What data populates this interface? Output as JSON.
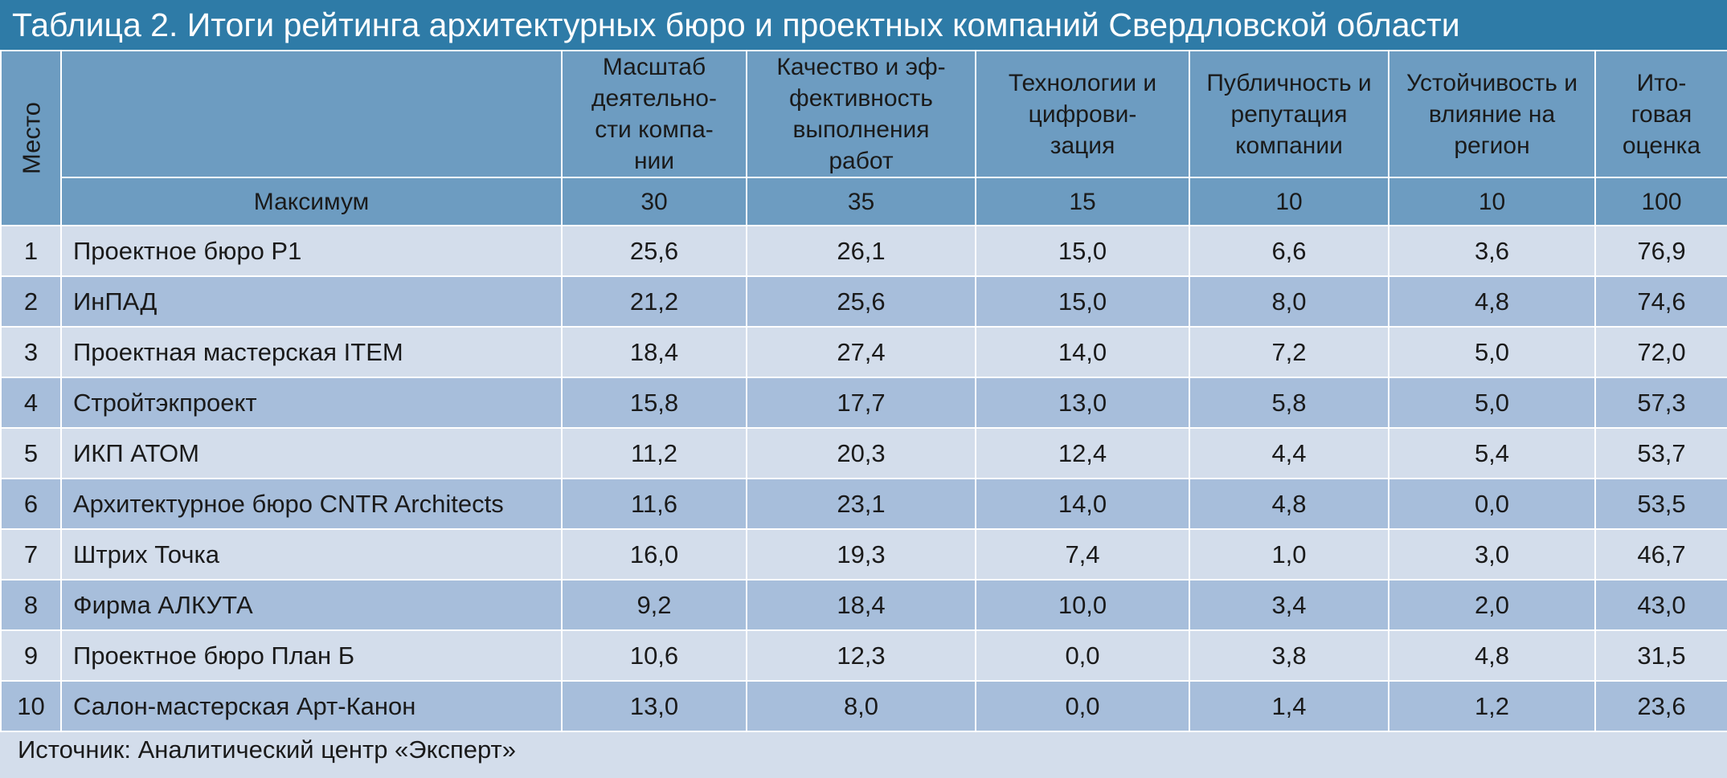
{
  "title": "Таблица 2. Итоги рейтинга архитектурных бюро и проектных компаний Свердловской области",
  "header": {
    "place": "Место",
    "columns": [
      {
        "label": "Масштаб деятельно-сти компа-нии"
      },
      {
        "label": "Качество и эф-фективность выполнения работ"
      },
      {
        "label": "Технологии и цифрови-зация"
      },
      {
        "label": "Публичность и репутация компании"
      },
      {
        "label": "Устойчивость и влияние на регион"
      },
      {
        "label": "Ито-говая оценка"
      }
    ],
    "max_label": "Максимум",
    "max_values": [
      "30",
      "35",
      "15",
      "10",
      "10",
      "100"
    ]
  },
  "rows": [
    {
      "place": "1",
      "name": "Проектное бюро Р1",
      "values": [
        "25,6",
        "26,1",
        "15,0",
        "6,6",
        "3,6",
        "76,9"
      ]
    },
    {
      "place": "2",
      "name": "ИнПАД",
      "values": [
        "21,2",
        "25,6",
        "15,0",
        "8,0",
        "4,8",
        "74,6"
      ]
    },
    {
      "place": "3",
      "name": "Проектная мастерская ITEM",
      "values": [
        "18,4",
        "27,4",
        "14,0",
        "7,2",
        "5,0",
        "72,0"
      ]
    },
    {
      "place": "4",
      "name": "Стройтэкпроект",
      "values": [
        "15,8",
        "17,7",
        "13,0",
        "5,8",
        "5,0",
        "57,3"
      ]
    },
    {
      "place": "5",
      "name": "ИКП АТОМ",
      "values": [
        "11,2",
        "20,3",
        "12,4",
        "4,4",
        "5,4",
        "53,7"
      ]
    },
    {
      "place": "6",
      "name": "Архитектурное бюро CNTR Architects",
      "values": [
        "11,6",
        "23,1",
        "14,0",
        "4,8",
        "0,0",
        "53,5"
      ]
    },
    {
      "place": "7",
      "name": "Штрих Точка",
      "values": [
        "16,0",
        "19,3",
        "7,4",
        "1,0",
        "3,0",
        "46,7"
      ]
    },
    {
      "place": "8",
      "name": "Фирма АЛКУТА",
      "values": [
        "9,2",
        "18,4",
        "10,0",
        "3,4",
        "2,0",
        "43,0"
      ]
    },
    {
      "place": "9",
      "name": "Проектное бюро План Б",
      "values": [
        "10,6",
        "12,3",
        "0,0",
        "3,8",
        "4,8",
        "31,5"
      ]
    },
    {
      "place": "10",
      "name": "Салон-мастерская Арт-Канон",
      "values": [
        "13,0",
        "8,0",
        "0,0",
        "1,4",
        "1,2",
        "23,6"
      ]
    }
  ],
  "source": "Источник: Аналитический центр «Эксперт»"
}
